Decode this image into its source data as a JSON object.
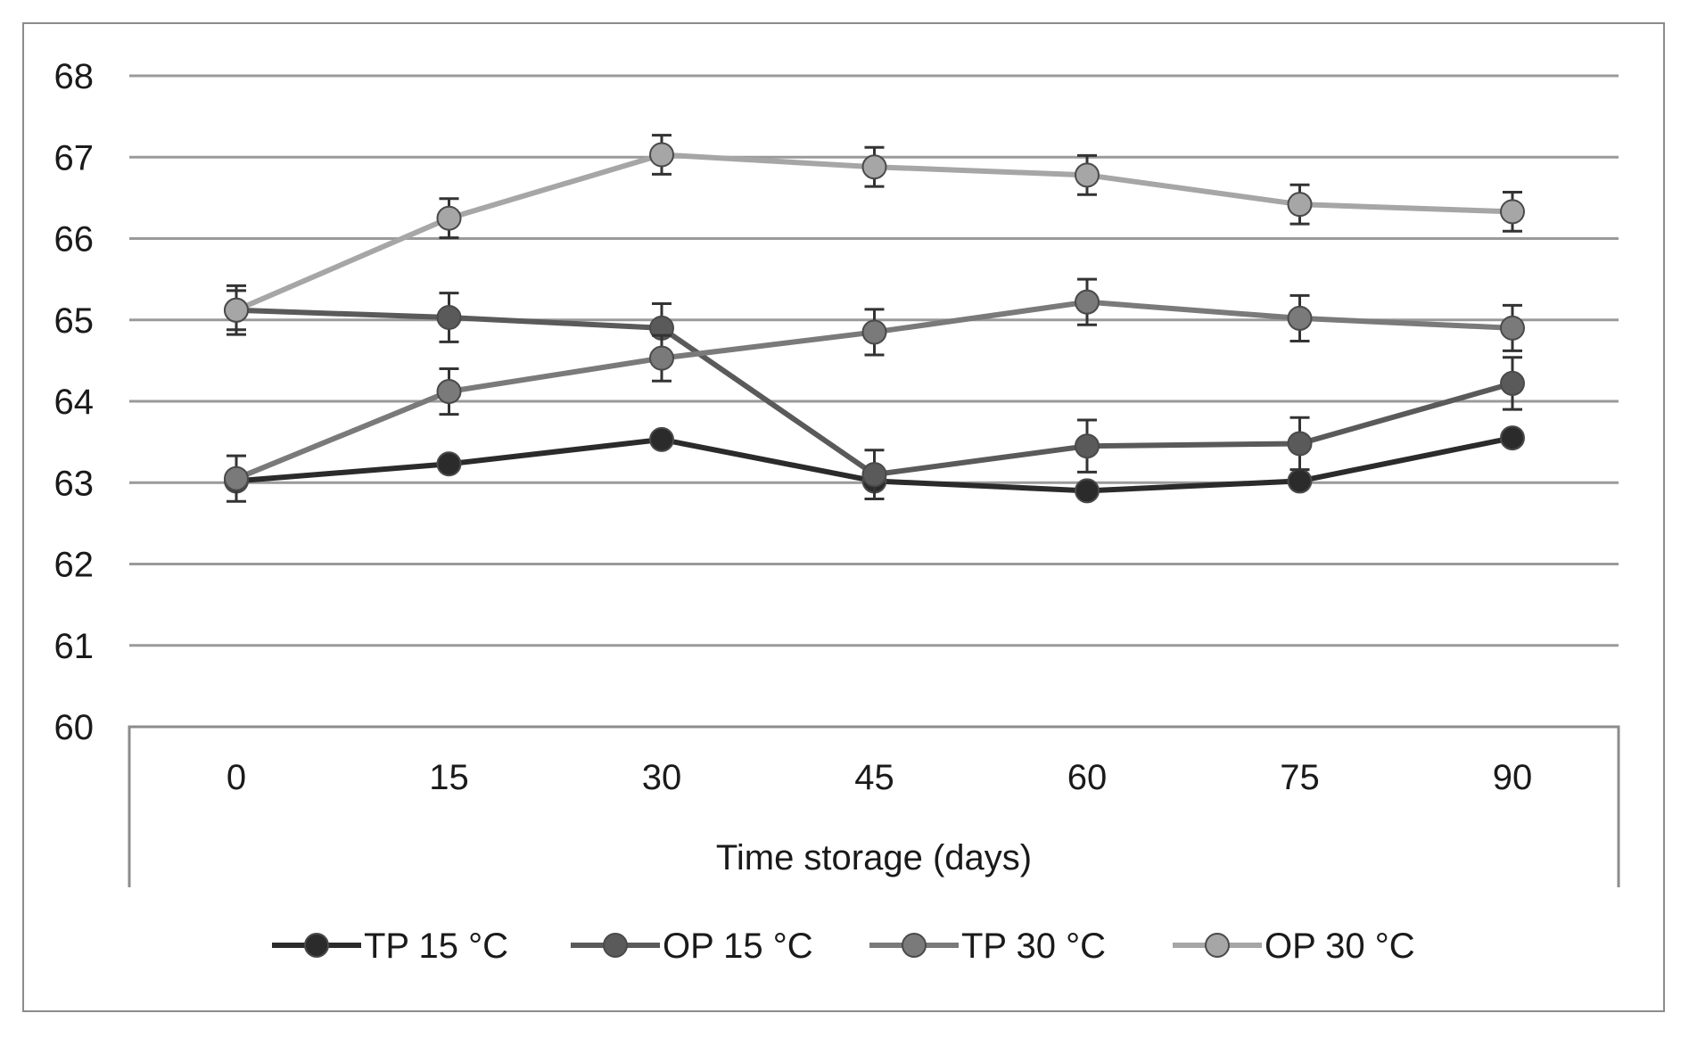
{
  "chart_data": {
    "type": "line",
    "title": "",
    "xlabel": "Time storage (days)",
    "ylabel": "",
    "x": [
      "0",
      "15",
      "30",
      "45",
      "60",
      "75",
      "90"
    ],
    "ylim": [
      60,
      68
    ],
    "yticks": [
      "60",
      "61",
      "62",
      "63",
      "64",
      "65",
      "66",
      "67",
      "68"
    ],
    "grid": true,
    "legend_position": "bottom",
    "series": [
      {
        "name": "TP 15 °C",
        "color": "#2b2b2b",
        "values": [
          63.02,
          63.23,
          63.53,
          63.02,
          62.9,
          63.02,
          63.55
        ],
        "errors": [
          0.0,
          0.0,
          0.0,
          0.0,
          0.0,
          0.0,
          0.0
        ]
      },
      {
        "name": "OP 15 °C",
        "color": "#5a5a5a",
        "values": [
          65.12,
          65.03,
          64.9,
          63.1,
          63.45,
          63.48,
          64.22
        ],
        "errors": [
          0.3,
          0.3,
          0.3,
          0.3,
          0.32,
          0.32,
          0.32
        ]
      },
      {
        "name": "TP 30 °C",
        "color": "#7a7a7a",
        "values": [
          63.05,
          64.12,
          64.53,
          64.85,
          65.22,
          65.02,
          64.9
        ],
        "errors": [
          0.28,
          0.28,
          0.28,
          0.28,
          0.28,
          0.28,
          0.28
        ]
      },
      {
        "name": "OP 30 °C",
        "color": "#a6a6a6",
        "values": [
          65.12,
          66.25,
          67.03,
          66.88,
          66.78,
          66.42,
          66.33
        ],
        "errors": [
          0.24,
          0.24,
          0.24,
          0.24,
          0.24,
          0.24,
          0.24
        ]
      }
    ]
  }
}
